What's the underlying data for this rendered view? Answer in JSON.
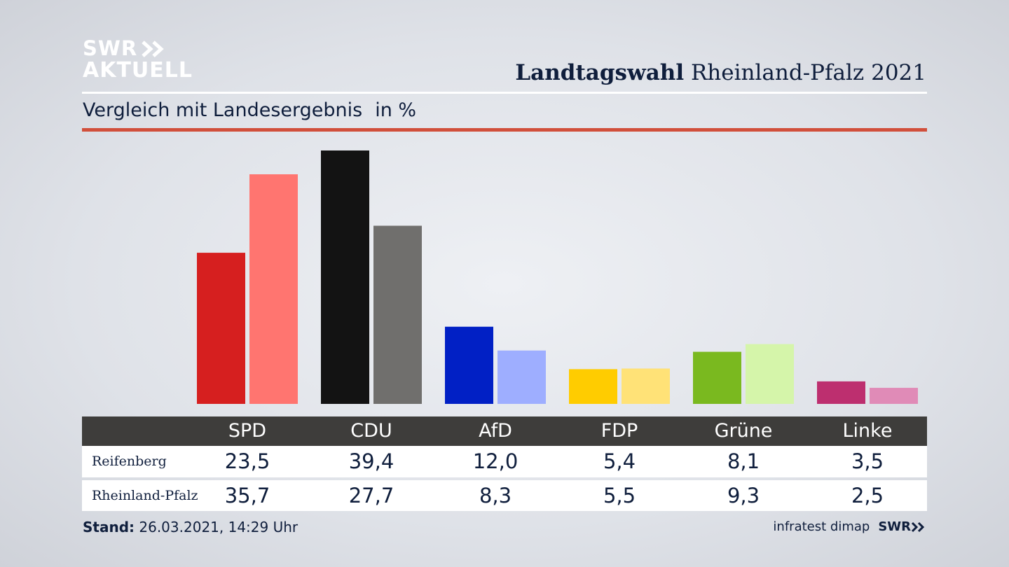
{
  "header": {
    "logo_line1": "SWR",
    "logo_line2": "AKTUELL",
    "title_bold": "Landtagswahl",
    "title_rest": "Rheinland-Pfalz 2021",
    "subtitle": "Vergleich mit Landesergebnis",
    "unit": "in %"
  },
  "chart_data": {
    "type": "bar",
    "title": "Landtagswahl Rheinland-Pfalz 2021",
    "subtitle": "Vergleich mit Landesergebnis",
    "ylabel": "in %",
    "ylim": [
      0,
      39.4
    ],
    "grid": false,
    "categories": [
      "SPD",
      "CDU",
      "AfD",
      "FDP",
      "Grüne",
      "Linke"
    ],
    "series": [
      {
        "name": "Reifenberg",
        "values": [
          23.5,
          39.4,
          12.0,
          5.4,
          8.1,
          3.5
        ],
        "labels": [
          "23,5",
          "39,4",
          "12,0",
          "5,4",
          "8,1",
          "3,5"
        ]
      },
      {
        "name": "Rheinland-Pfalz",
        "values": [
          35.7,
          27.7,
          8.3,
          5.5,
          9.3,
          2.5
        ],
        "labels": [
          "35,7",
          "27,7",
          "8,3",
          "5,5",
          "9,3",
          "2,5"
        ]
      }
    ],
    "colors": {
      "Reifenberg": [
        "#d61f1f",
        "#131313",
        "#0120c5",
        "#ffcc00",
        "#7ab91f",
        "#bd2f6f"
      ],
      "Rheinland-Pfalz": [
        "#ff7570",
        "#706f6d",
        "#9eaeff",
        "#ffe277",
        "#d5f5aa",
        "#e08bb7"
      ]
    }
  },
  "footer": {
    "stand_label": "Stand:",
    "stand_value": "26.03.2021, 14:29 Uhr",
    "source": "infratest dimap",
    "brand": "SWR"
  }
}
